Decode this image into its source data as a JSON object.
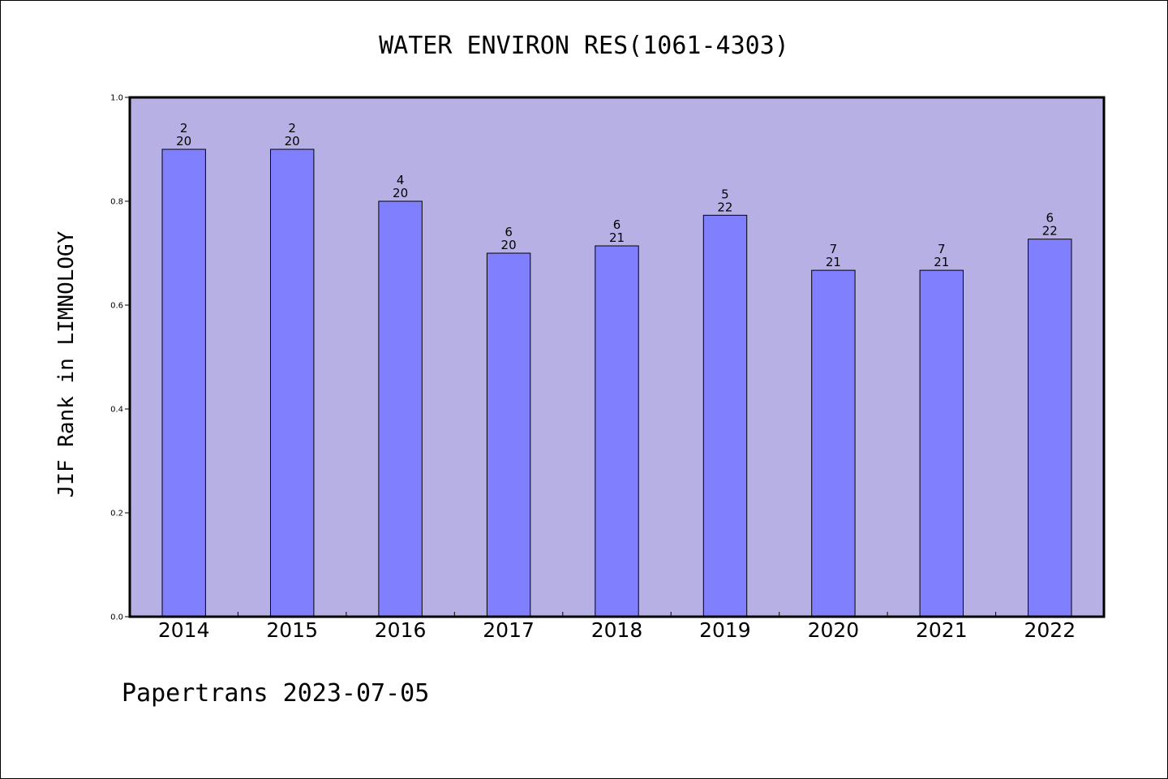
{
  "chart_data": {
    "type": "bar",
    "title": "WATER ENVIRON RES(1061-4303)",
    "ylabel": "JIF Rank in LIMNOLOGY",
    "xlabel": "",
    "ylim": [
      0,
      1.0
    ],
    "yticks": [
      "0.0",
      "0.2",
      "0.4",
      "0.6",
      "0.8",
      "1.0"
    ],
    "grid": false,
    "categories": [
      "2014",
      "2015",
      "2016",
      "2017",
      "2018",
      "2019",
      "2020",
      "2021",
      "2022"
    ],
    "values": [
      0.9,
      0.9,
      0.8,
      0.7,
      0.714,
      0.773,
      0.667,
      0.667,
      0.727
    ],
    "ranks": [
      "2",
      "2",
      "4",
      "6",
      "6",
      "5",
      "7",
      "7",
      "6"
    ],
    "totals": [
      "20",
      "20",
      "20",
      "20",
      "21",
      "22",
      "21",
      "21",
      "22"
    ],
    "colors": {
      "plot_background": "#b6b0e4",
      "bar_fill": "#8080ff",
      "bar_stroke": "#000000"
    }
  },
  "footer": "Papertrans 2023-07-05"
}
